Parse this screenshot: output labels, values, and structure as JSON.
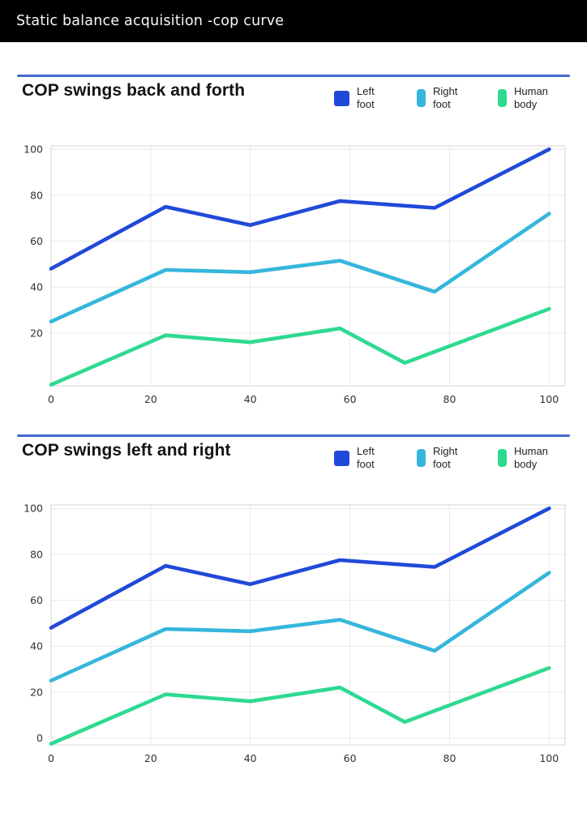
{
  "header": {
    "title": "Static balance acquisition -cop curve"
  },
  "sections": [
    {
      "title": "COP swings back and forth"
    },
    {
      "title": "COP swings left and right"
    }
  ],
  "legend": [
    {
      "line1": "Left",
      "line2": "foot",
      "color": "#2149d9"
    },
    {
      "line1": "Right",
      "line2": "foot",
      "color": "#35b6dc"
    },
    {
      "line1": "Human",
      "line2": "body",
      "color": "#2eda90"
    }
  ],
  "colors": {
    "header_bg": "#000000",
    "header_text": "#f7f7f7",
    "divider_blue": "#4169cd",
    "left_foot_blue": "#2149d9",
    "right_foot_cyan": "#35b6dc",
    "human_body_green": "#2eda90",
    "gridline": "#e9e9e9"
  },
  "chart_data": [
    {
      "type": "line",
      "title": "COP swings back and forth",
      "xlabel": "",
      "ylabel": "",
      "xlim": [
        0,
        103.2
      ],
      "ylim": [
        -3,
        101.5
      ],
      "xticks": [
        0,
        20,
        40,
        60,
        80,
        100
      ],
      "yticks": [
        20,
        40,
        60,
        80,
        100
      ],
      "grid": true,
      "legend_position": "top-right",
      "series": [
        {
          "name": "Left foot",
          "color": "#2149d9",
          "points": [
            [
              0,
              48
            ],
            [
              23,
              75
            ],
            [
              40,
              67
            ],
            [
              58,
              77.5
            ],
            [
              77,
              74.5
            ],
            [
              100,
              100
            ]
          ]
        },
        {
          "name": "Right foot",
          "color": "#35b6dc",
          "points": [
            [
              0,
              25
            ],
            [
              23,
              47.5
            ],
            [
              40,
              46.5
            ],
            [
              58,
              51.5
            ],
            [
              77,
              38
            ],
            [
              100,
              72
            ]
          ]
        },
        {
          "name": "Human body",
          "color": "#2eda90",
          "points": [
            [
              0,
              -2.5
            ],
            [
              23,
              19
            ],
            [
              40,
              16
            ],
            [
              58,
              22
            ],
            [
              71,
              7
            ],
            [
              100,
              30.5
            ]
          ]
        }
      ]
    },
    {
      "type": "line",
      "title": "COP swings left and right",
      "xlabel": "",
      "ylabel": "",
      "xlim": [
        0,
        103.2
      ],
      "ylim": [
        -3,
        101.5
      ],
      "xticks": [
        0,
        20,
        40,
        60,
        80,
        100
      ],
      "yticks": [
        0,
        20,
        40,
        60,
        80,
        100
      ],
      "grid": true,
      "legend_position": "top-right",
      "series": [
        {
          "name": "Left foot",
          "color": "#2149d9",
          "points": [
            [
              0,
              48
            ],
            [
              23,
              75
            ],
            [
              40,
              67
            ],
            [
              58,
              77.5
            ],
            [
              77,
              74.5
            ],
            [
              100,
              100
            ]
          ]
        },
        {
          "name": "Right foot",
          "color": "#35b6dc",
          "points": [
            [
              0,
              25
            ],
            [
              23,
              47.5
            ],
            [
              40,
              46.5
            ],
            [
              58,
              51.5
            ],
            [
              77,
              38
            ],
            [
              100,
              72
            ]
          ]
        },
        {
          "name": "Human body",
          "color": "#2eda90",
          "points": [
            [
              0,
              -2.5
            ],
            [
              23,
              19
            ],
            [
              40,
              16
            ],
            [
              58,
              22
            ],
            [
              71,
              7
            ],
            [
              100,
              30.5
            ]
          ]
        }
      ]
    }
  ]
}
